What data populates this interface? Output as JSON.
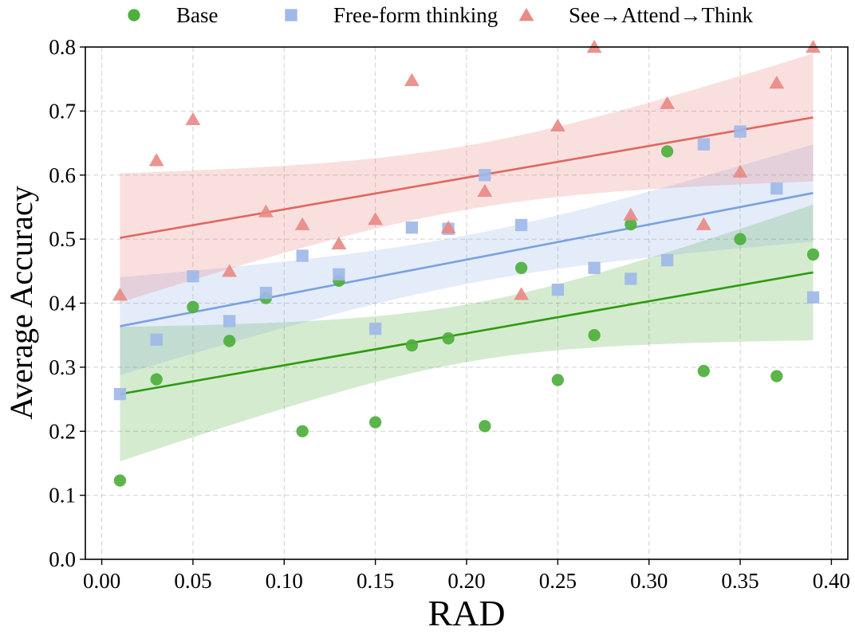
{
  "chart_data": {
    "type": "scatter",
    "title": "",
    "xlabel": "RAD",
    "ylabel": "Average Accuracy",
    "xlim": [
      -0.009,
      0.409
    ],
    "ylim": [
      0.0,
      0.8
    ],
    "grid": true,
    "legend_placement": "top (above plot, horizontal)",
    "x_ticks": [
      "0.00",
      "0.05",
      "0.10",
      "0.15",
      "0.20",
      "0.25",
      "0.30",
      "0.35",
      "0.40"
    ],
    "y_ticks": [
      "0.0",
      "0.1",
      "0.2",
      "0.3",
      "0.4",
      "0.5",
      "0.6",
      "0.7",
      "0.8"
    ],
    "x": [
      0.01,
      0.03,
      0.05,
      0.07,
      0.09,
      0.11,
      0.13,
      0.15,
      0.17,
      0.19,
      0.21,
      0.23,
      0.25,
      0.27,
      0.29,
      0.31,
      0.33,
      0.35,
      0.37,
      0.39
    ],
    "series": [
      {
        "name": "Base",
        "marker": "circle",
        "color": "#4daf3c",
        "line_color": "#2e9a10",
        "values": [
          0.123,
          0.281,
          0.394,
          0.341,
          0.408,
          0.2,
          0.435,
          0.214,
          0.334,
          0.345,
          0.208,
          0.455,
          0.28,
          0.35,
          0.523,
          0.637,
          0.294,
          0.5,
          0.286,
          0.476
        ],
        "fit": {
          "start": 0.258,
          "end": 0.448
        },
        "ci": {
          "lower_start": 0.155,
          "upper_start": 0.365,
          "lower_end": 0.343,
          "upper_end": 0.555,
          "halfwidth_center": 0.045
        }
      },
      {
        "name": "Free-form thinking",
        "marker": "square",
        "color": "#9fb8e8",
        "line_color": "#7aa0e0",
        "values": [
          0.258,
          0.343,
          0.442,
          0.372,
          0.416,
          0.474,
          0.445,
          0.36,
          0.518,
          0.516,
          0.6,
          0.522,
          0.421,
          0.455,
          0.438,
          0.467,
          0.648,
          0.668,
          0.579,
          0.409
        ],
        "fit": {
          "start": 0.364,
          "end": 0.572
        },
        "ci": {
          "lower_start": 0.287,
          "upper_start": 0.44,
          "lower_end": 0.496,
          "upper_end": 0.648,
          "halfwidth_center": 0.038
        }
      },
      {
        "name": "See→Attend→Think",
        "marker": "triangle",
        "color": "#e88a86",
        "line_color": "#e06660",
        "values": [
          0.413,
          0.623,
          0.687,
          0.45,
          0.543,
          0.523,
          0.493,
          0.531,
          0.748,
          0.518,
          0.575,
          0.414,
          0.677,
          0.8,
          0.538,
          0.712,
          0.523,
          0.605,
          0.744,
          0.8
        ],
        "fit": {
          "start": 0.502,
          "end": 0.69
        },
        "ci": {
          "lower_start": 0.4,
          "upper_start": 0.602,
          "lower_end": 0.59,
          "upper_end": 0.79,
          "halfwidth_center": 0.05
        }
      }
    ]
  }
}
